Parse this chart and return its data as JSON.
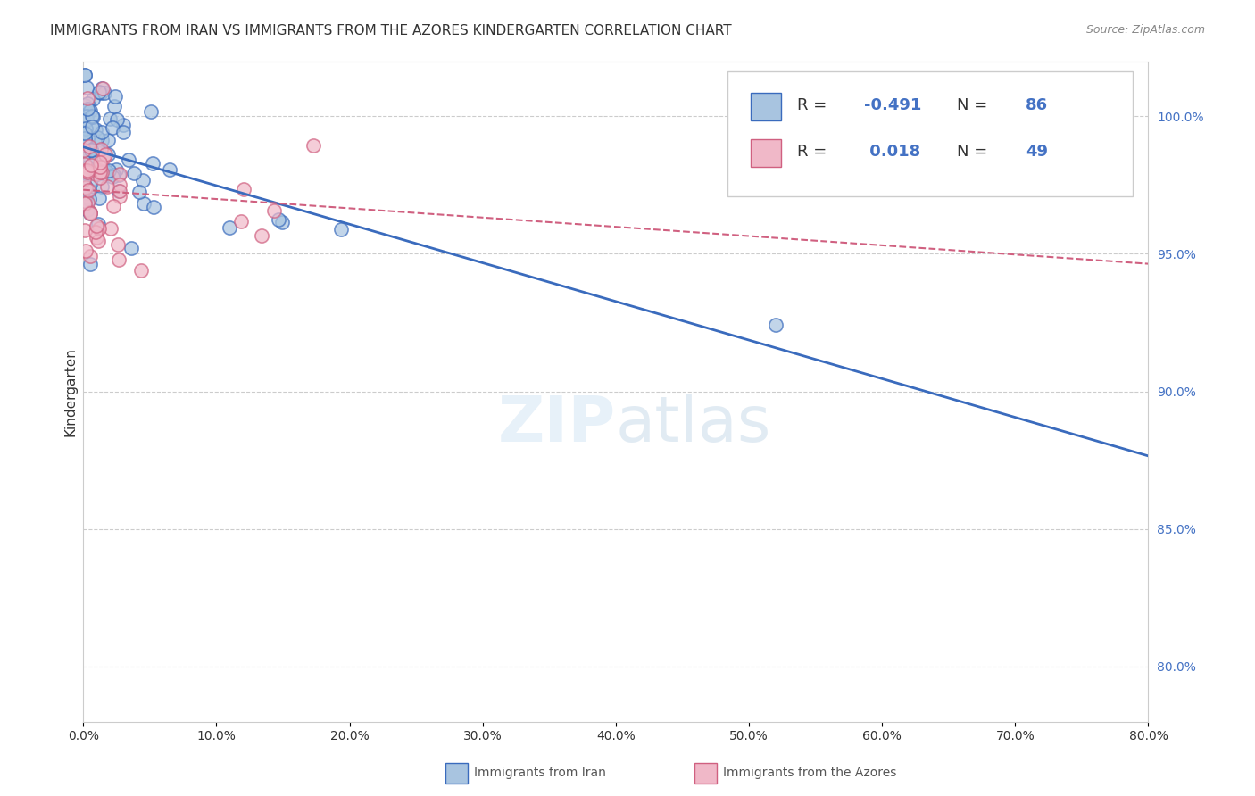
{
  "title": "IMMIGRANTS FROM IRAN VS IMMIGRANTS FROM THE AZORES KINDERGARTEN CORRELATION CHART",
  "source": "Source: ZipAtlas.com",
  "ylabel": "Kindergarten",
  "xlim": [
    0.0,
    80.0
  ],
  "ylim": [
    78.0,
    102.0
  ],
  "yticks_right": [
    80.0,
    85.0,
    90.0,
    95.0,
    100.0
  ],
  "xticks": [
    0.0,
    10.0,
    20.0,
    30.0,
    40.0,
    50.0,
    60.0,
    70.0,
    80.0
  ],
  "iran_R": -0.491,
  "iran_N": 86,
  "azores_R": 0.018,
  "azores_N": 49,
  "iran_color": "#a8c4e0",
  "iran_line_color": "#3a6bbd",
  "azores_color": "#f0b8c8",
  "azores_line_color": "#d06080",
  "legend_color": "#4472c4"
}
